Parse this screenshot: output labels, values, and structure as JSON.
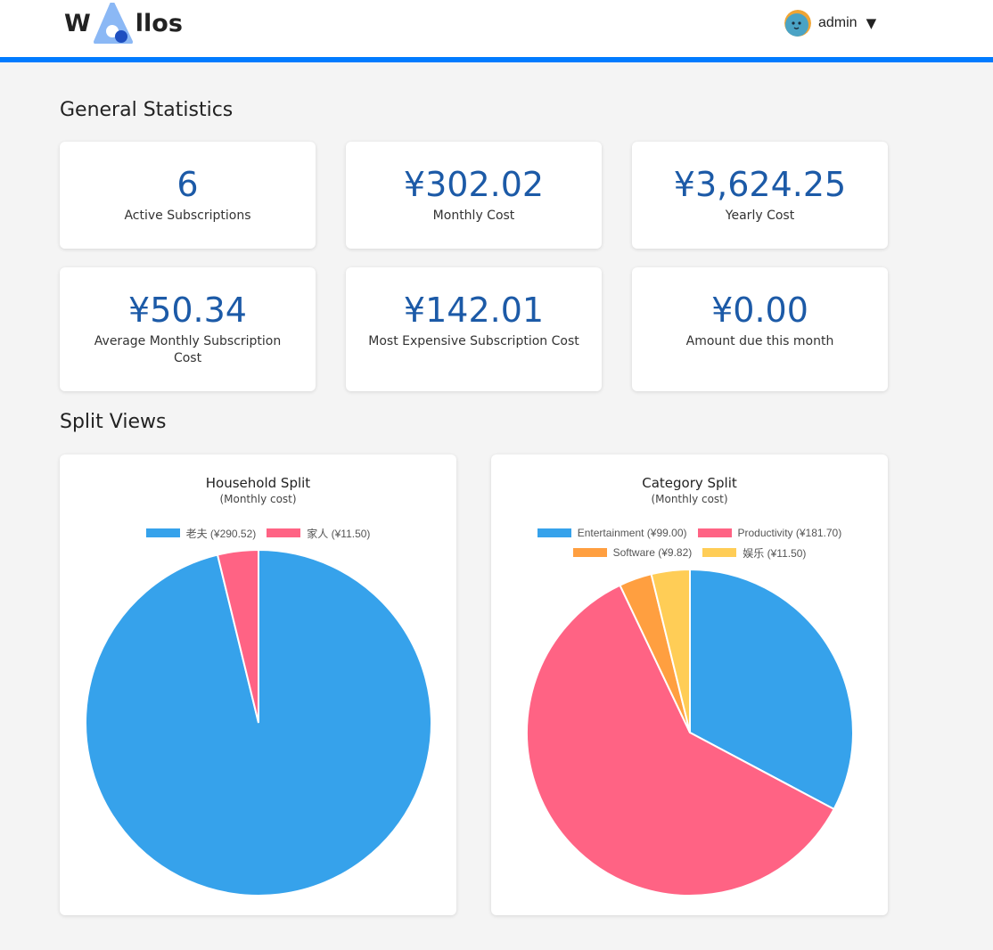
{
  "header": {
    "logo_left": "W",
    "logo_right": "llos",
    "user": {
      "name": "admin",
      "caret": "▼"
    }
  },
  "general": {
    "title": "General Statistics",
    "stats": [
      {
        "value": "6",
        "label": "Active Subscriptions"
      },
      {
        "value": "¥302.02",
        "label": "Monthly Cost"
      },
      {
        "value": "¥3,624.25",
        "label": "Yearly Cost"
      },
      {
        "value": "¥50.34",
        "label": "Average Monthly Subscription Cost"
      },
      {
        "value": "¥142.01",
        "label": "Most Expensive Subscription Cost"
      },
      {
        "value": "¥0.00",
        "label": "Amount due this month"
      }
    ]
  },
  "split": {
    "title": "Split Views"
  },
  "chart_data": [
    {
      "type": "pie",
      "title": "Household Split",
      "subtitle": "(Monthly cost)",
      "labels": [
        "老夫 (¥290.52)",
        "家人 (¥11.50)"
      ],
      "values": [
        290.52,
        11.5
      ],
      "colors": [
        "#36a2eb",
        "#ff6384"
      ],
      "legend": "top"
    },
    {
      "type": "pie",
      "title": "Category Split",
      "subtitle": "(Monthly cost)",
      "labels": [
        "Entertainment (¥99.00)",
        "Productivity (¥181.70)",
        "Software (¥9.82)",
        "娱乐 (¥11.50)"
      ],
      "values": [
        99.0,
        181.7,
        9.82,
        11.5
      ],
      "colors": [
        "#36a2eb",
        "#ff6384",
        "#ff9f40",
        "#ffcd56"
      ],
      "legend": "top"
    }
  ]
}
